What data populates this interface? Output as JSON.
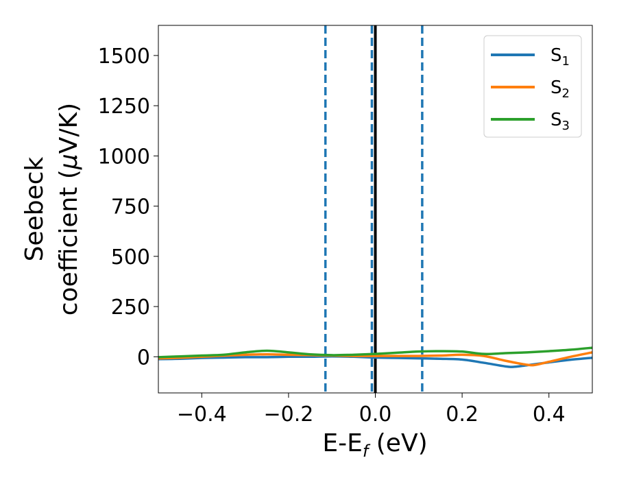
{
  "chart_data": {
    "type": "line",
    "title": "",
    "xlabel": "E-E",
    "xlabel_sub": "f",
    "xlabel_unit": " (eV)",
    "ylabel_line1": "Seebeck",
    "ylabel_line2": "coefficient  (",
    "ylabel_mu": "μ",
    "ylabel_unit": "V/K)",
    "xlim": [
      -0.5,
      0.5
    ],
    "ylim": [
      -180,
      1650
    ],
    "xticks": [
      -0.4,
      -0.2,
      0.0,
      0.2,
      0.4
    ],
    "xtick_labels": [
      "−0.4",
      "−0.2",
      "0.0",
      "0.2",
      "0.4"
    ],
    "yticks": [
      0,
      250,
      500,
      750,
      1000,
      1250,
      1500
    ],
    "ytick_labels": [
      "0",
      "250",
      "500",
      "750",
      "1000",
      "1250",
      "1500"
    ],
    "grid": false,
    "legend_position": "top-right",
    "vlines": [
      {
        "x": -0.115,
        "style": "dashed",
        "color": "#1f77b4"
      },
      {
        "x": -0.008,
        "style": "dashed",
        "color": "#1f77b4"
      },
      {
        "x": 0.0,
        "style": "solid",
        "color": "#000000"
      },
      {
        "x": 0.108,
        "style": "dashed",
        "color": "#1f77b4"
      }
    ],
    "series": [
      {
        "name": "S",
        "sub": "1",
        "color": "#1f77b4",
        "x": [
          -0.5,
          -0.45,
          -0.4,
          -0.35,
          -0.3,
          -0.25,
          -0.2,
          -0.15,
          -0.1,
          -0.05,
          0.0,
          0.05,
          0.1,
          0.15,
          0.2,
          0.25,
          0.3,
          0.32,
          0.35,
          0.4,
          0.45,
          0.5
        ],
        "y": [
          -12,
          -10,
          -6,
          -4,
          -2,
          -2,
          0,
          0,
          2,
          0,
          -4,
          -6,
          -8,
          -10,
          -14,
          -30,
          -48,
          -50,
          -42,
          -28,
          -15,
          -5
        ]
      },
      {
        "name": "S",
        "sub": "2",
        "color": "#ff7f0e",
        "x": [
          -0.5,
          -0.45,
          -0.4,
          -0.35,
          -0.3,
          -0.25,
          -0.2,
          -0.15,
          -0.1,
          -0.05,
          0.0,
          0.05,
          0.1,
          0.15,
          0.2,
          0.25,
          0.3,
          0.35,
          0.37,
          0.4,
          0.45,
          0.5
        ],
        "y": [
          -8,
          -5,
          0,
          5,
          10,
          12,
          10,
          8,
          6,
          4,
          4,
          4,
          4,
          6,
          10,
          4,
          -20,
          -40,
          -40,
          -25,
          0,
          22
        ]
      },
      {
        "name": "S",
        "sub": "3",
        "color": "#2ca02c",
        "x": [
          -0.5,
          -0.45,
          -0.4,
          -0.35,
          -0.3,
          -0.25,
          -0.2,
          -0.15,
          -0.1,
          -0.05,
          0.0,
          0.05,
          0.1,
          0.15,
          0.2,
          0.25,
          0.3,
          0.35,
          0.4,
          0.45,
          0.5
        ],
        "y": [
          -2,
          2,
          6,
          10,
          22,
          30,
          22,
          12,
          8,
          10,
          14,
          20,
          26,
          28,
          26,
          14,
          18,
          22,
          28,
          35,
          45
        ]
      }
    ]
  }
}
